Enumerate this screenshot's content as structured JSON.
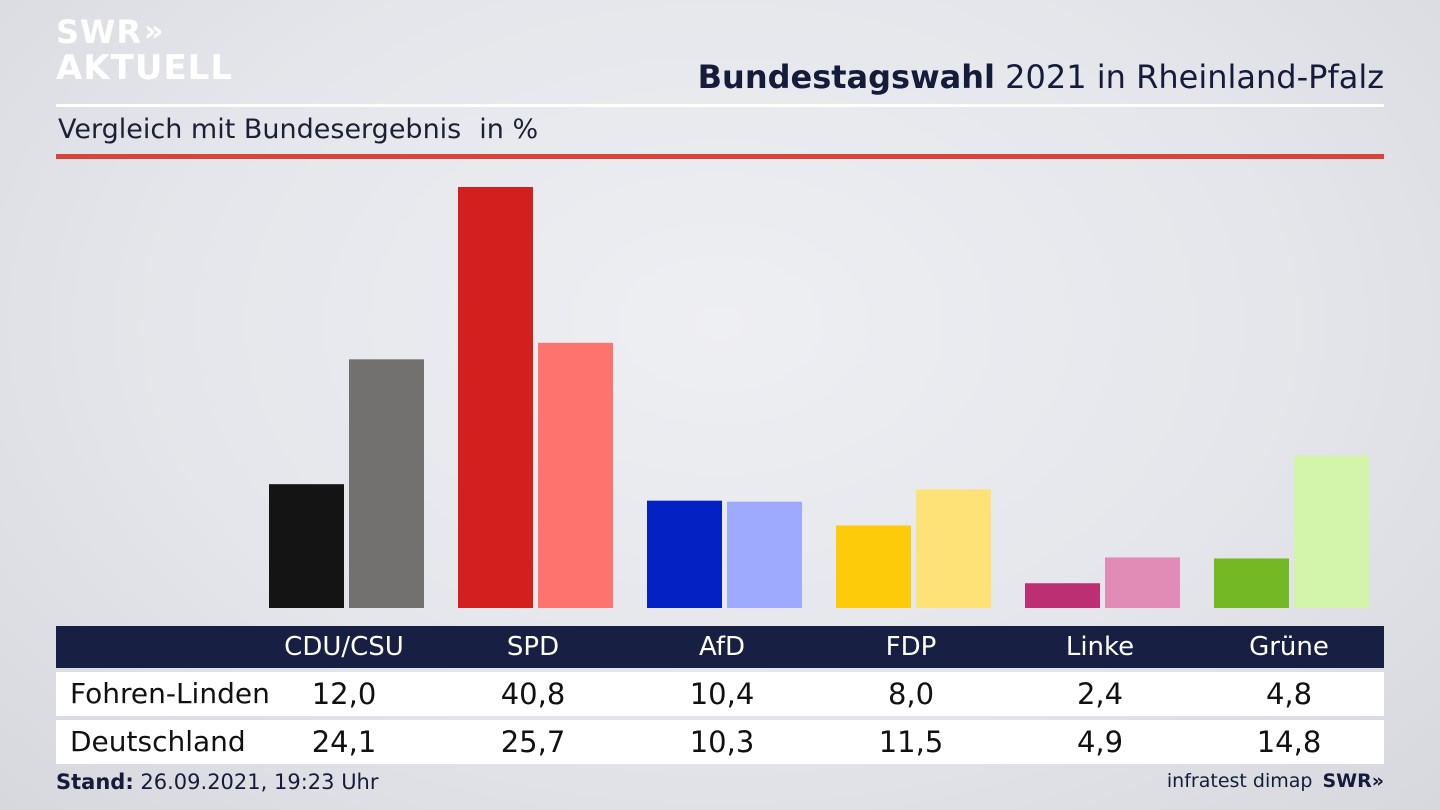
{
  "brand": {
    "line1": "SWR",
    "line2": "AKTUELL",
    "chevrons": "»",
    "footer_logo": "SWR»"
  },
  "header": {
    "title_bold": "Bundestagswahl",
    "title_rest": "2021 in Rheinland-Pfalz",
    "subtitle": "Vergleich mit Bundesergebnis",
    "unit": "in %"
  },
  "chart_data": {
    "type": "bar",
    "categories": [
      "CDU/CSU",
      "SPD",
      "AfD",
      "FDP",
      "Linke",
      "Grüne"
    ],
    "series": [
      {
        "name": "Fohren-Linden",
        "values": [
          12.0,
          40.8,
          10.4,
          8.0,
          2.4,
          4.8
        ],
        "colors": [
          "#141414",
          "#d41f1f",
          "#0422c4",
          "#fdcb0a",
          "#bc2f73",
          "#75b825"
        ]
      },
      {
        "name": "Deutschland",
        "values": [
          24.1,
          25.7,
          10.3,
          11.5,
          4.9,
          14.8
        ],
        "colors": [
          "#727170",
          "#fe736d",
          "#9daafd",
          "#fde377",
          "#e18bb7",
          "#d3f5a9"
        ]
      }
    ],
    "ylim": [
      0,
      40.8
    ],
    "grid": false,
    "legend": "table-below"
  },
  "table": {
    "headers": [
      "CDU/CSU",
      "SPD",
      "AfD",
      "FDP",
      "Linke",
      "Grüne"
    ],
    "rows": [
      {
        "label": "Fohren-Linden",
        "values": [
          "12,0",
          "40,8",
          "10,4",
          "8,0",
          "2,4",
          "4,8"
        ]
      },
      {
        "label": "Deutschland",
        "values": [
          "24,1",
          "25,7",
          "10,3",
          "11,5",
          "4,9",
          "14,8"
        ]
      }
    ]
  },
  "footer": {
    "stand_label": "Stand:",
    "stand_value": "26.09.2021, 19:23 Uhr",
    "source": "infratest dimap"
  }
}
